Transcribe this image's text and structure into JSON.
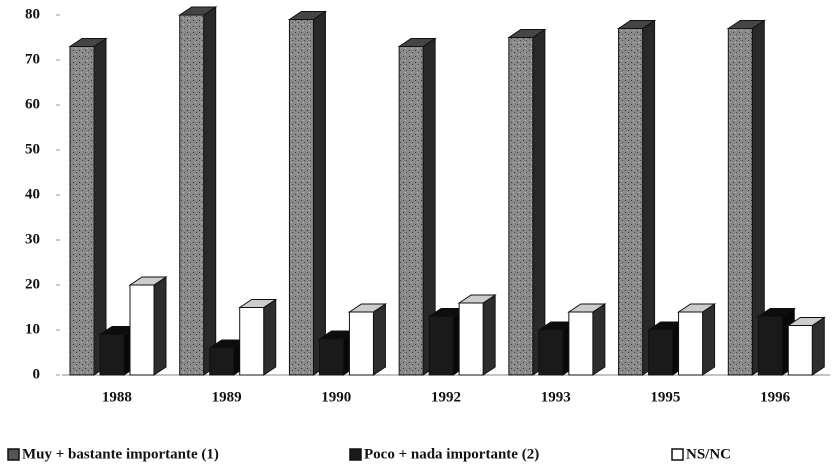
{
  "chart_data": {
    "type": "bar3d",
    "categories": [
      "1988",
      "1989",
      "1990",
      "1992",
      "1993",
      "1995",
      "1996"
    ],
    "series": [
      {
        "name": "Muy + bastante importante (1)",
        "color": "#8a8a8a",
        "values": [
          73,
          80,
          79,
          73,
          75,
          77,
          77
        ]
      },
      {
        "name": "Poco + nada importante (2)",
        "color": "#1a1a1a",
        "values": [
          9,
          6,
          8,
          13,
          10,
          10,
          13
        ]
      },
      {
        "name": "NS/NC",
        "color": "#ffffff",
        "values": [
          20,
          15,
          14,
          16,
          14,
          14,
          11
        ]
      }
    ],
    "ylim": [
      0,
      80
    ],
    "yticks": [
      0,
      10,
      20,
      30,
      40,
      50,
      60,
      70,
      80
    ],
    "grid": false
  }
}
